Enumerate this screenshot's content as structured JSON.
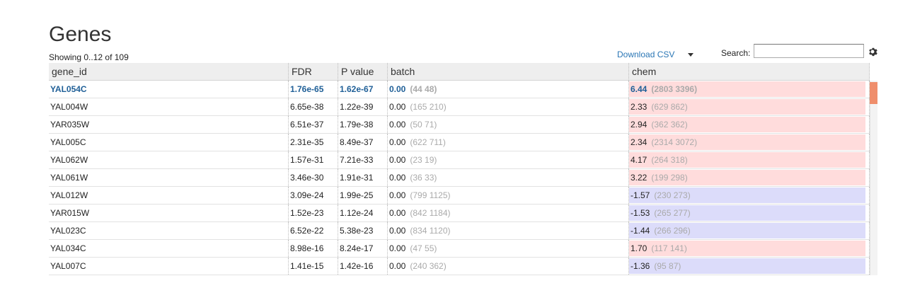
{
  "page": {
    "title": "Genes",
    "showing": "Showing 0..12 of 109",
    "download_label": "Download CSV",
    "search_label": "Search:",
    "search_value": ""
  },
  "colors": {
    "up_bg": "#ffdcdc",
    "down_bg": "#dcdcfa",
    "accent": "#2a76b5",
    "scroll_thumb": "#ef8e6c"
  },
  "columns": [
    "gene_id",
    "FDR",
    "P value",
    "batch",
    "chem"
  ],
  "rows": [
    {
      "gene_id": "YAL054C",
      "fdr": "1.76e-65",
      "pval": "1.62e-67",
      "batch": "0.00",
      "batch_paren": "(44 48)",
      "chem": "6.44",
      "chem_paren": "(2803 3396)",
      "dir": "up",
      "selected": true
    },
    {
      "gene_id": "YAL004W",
      "fdr": "6.65e-38",
      "pval": "1.22e-39",
      "batch": "0.00",
      "batch_paren": "(165 210)",
      "chem": "2.33",
      "chem_paren": "(629 862)",
      "dir": "up",
      "selected": false
    },
    {
      "gene_id": "YAR035W",
      "fdr": "6.51e-37",
      "pval": "1.79e-38",
      "batch": "0.00",
      "batch_paren": "(50 71)",
      "chem": "2.94",
      "chem_paren": "(362 362)",
      "dir": "up",
      "selected": false
    },
    {
      "gene_id": "YAL005C",
      "fdr": "2.31e-35",
      "pval": "8.49e-37",
      "batch": "0.00",
      "batch_paren": "(622 711)",
      "chem": "2.34",
      "chem_paren": "(2314 3072)",
      "dir": "up",
      "selected": false
    },
    {
      "gene_id": "YAL062W",
      "fdr": "1.57e-31",
      "pval": "7.21e-33",
      "batch": "0.00",
      "batch_paren": "(23 19)",
      "chem": "4.17",
      "chem_paren": "(264 318)",
      "dir": "up",
      "selected": false
    },
    {
      "gene_id": "YAL061W",
      "fdr": "3.46e-30",
      "pval": "1.91e-31",
      "batch": "0.00",
      "batch_paren": "(36 33)",
      "chem": "3.22",
      "chem_paren": "(199 298)",
      "dir": "up",
      "selected": false
    },
    {
      "gene_id": "YAL012W",
      "fdr": "3.09e-24",
      "pval": "1.99e-25",
      "batch": "0.00",
      "batch_paren": "(799 1125)",
      "chem": "-1.57",
      "chem_paren": "(230 273)",
      "dir": "down",
      "selected": false
    },
    {
      "gene_id": "YAR015W",
      "fdr": "1.52e-23",
      "pval": "1.12e-24",
      "batch": "0.00",
      "batch_paren": "(842 1184)",
      "chem": "-1.53",
      "chem_paren": "(265 277)",
      "dir": "down",
      "selected": false
    },
    {
      "gene_id": "YAL023C",
      "fdr": "6.52e-22",
      "pval": "5.38e-23",
      "batch": "0.00",
      "batch_paren": "(834 1120)",
      "chem": "-1.44",
      "chem_paren": "(266 296)",
      "dir": "down",
      "selected": false
    },
    {
      "gene_id": "YAL034C",
      "fdr": "8.98e-16",
      "pval": "8.24e-17",
      "batch": "0.00",
      "batch_paren": "(47 55)",
      "chem": "1.70",
      "chem_paren": "(117 141)",
      "dir": "up",
      "selected": false
    },
    {
      "gene_id": "YAL007C",
      "fdr": "1.41e-15",
      "pval": "1.42e-16",
      "batch": "0.00",
      "batch_paren": "(240 362)",
      "chem": "-1.36",
      "chem_paren": "(95 87)",
      "dir": "down",
      "selected": false
    },
    {
      "gene_id": "",
      "fdr": "",
      "pval": "",
      "batch": "",
      "batch_paren": "",
      "chem": "",
      "chem_paren": "",
      "dir": "up",
      "selected": false
    }
  ]
}
